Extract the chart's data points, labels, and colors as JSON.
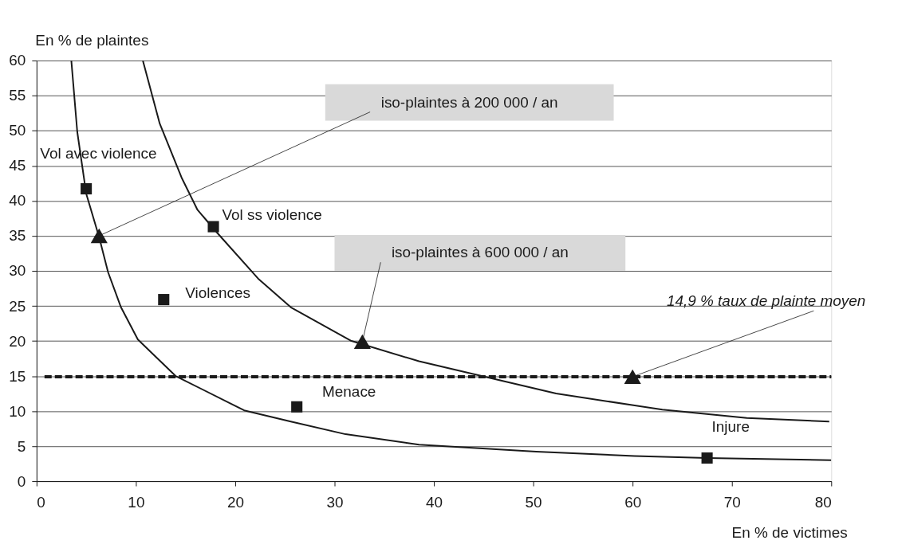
{
  "chart_data": {
    "type": "line",
    "xlabel": "En % de victimes",
    "ylabel": "En % de plaintes",
    "xlim": [
      0,
      80
    ],
    "ylim": [
      0,
      60
    ],
    "xticks": [
      0,
      10,
      20,
      30,
      40,
      50,
      60,
      70,
      80
    ],
    "yticks": [
      0,
      5,
      10,
      15,
      20,
      25,
      30,
      35,
      40,
      45,
      50,
      55,
      60
    ],
    "grid": "y",
    "series": [
      {
        "color": "#1a1a1a",
        "marker": "none",
        "line_style": "solid",
        "x": [
          3.5,
          4.1,
          5.0,
          6.3,
          7.2,
          8.5,
          10.2,
          14.0,
          20.9,
          25.6,
          31.1,
          38.5,
          50.3,
          60.2,
          67.5,
          80
        ],
        "values": [
          60,
          49.8,
          41,
          34.8,
          29.8,
          24.8,
          20.2,
          15.0,
          10.1,
          8.5,
          6.7,
          5.2,
          4.2,
          3.6,
          3.3,
          3.0
        ]
      },
      {
        "color": "#1a1a1a",
        "marker": "none",
        "line_style": "solid",
        "x": [
          10.7,
          12.4,
          14.6,
          16.2,
          18.2,
          22.3,
          25.6,
          31.7,
          38.5,
          44.8,
          52.3,
          63.0,
          71.5,
          79.8
        ],
        "values": [
          60,
          51.0,
          43.3,
          38.7,
          35.4,
          28.9,
          24.8,
          20.0,
          17.1,
          15.0,
          12.5,
          10.2,
          9.0,
          8.5
        ]
      },
      {
        "type": "scatter",
        "color": "#1a1a1a",
        "marker": "square",
        "x": [
          5.0,
          17.8,
          12.8,
          26.2,
          67.5
        ],
        "values": [
          41.7,
          36.3,
          25.9,
          10.6,
          3.3
        ]
      }
    ],
    "ref_lines": [
      {
        "axis": "y",
        "value": 14.9,
        "color": "#1a1a1a",
        "line_style": "dashed"
      }
    ],
    "annotations": [
      {
        "text": "Vol avec violence",
        "x": 5.0,
        "y": 41.7
      },
      {
        "text": "Vol ss violence",
        "x": 17.8,
        "y": 36.3
      },
      {
        "text": "Violences",
        "x": 12.8,
        "y": 25.9
      },
      {
        "text": "Menace",
        "x": 26.2,
        "y": 10.6
      },
      {
        "text": "Injure",
        "x": 67.5,
        "y": 3.3
      },
      {
        "text": "iso-plaintes à  200 000 / an",
        "x": 6.3,
        "y": 35
      },
      {
        "text": "iso-plaintes à  600 000 / an",
        "x": 32.8,
        "y": 19.9
      },
      {
        "text": "14,9 % taux de plainte moyen",
        "x": 60,
        "y": 14.9
      }
    ]
  }
}
